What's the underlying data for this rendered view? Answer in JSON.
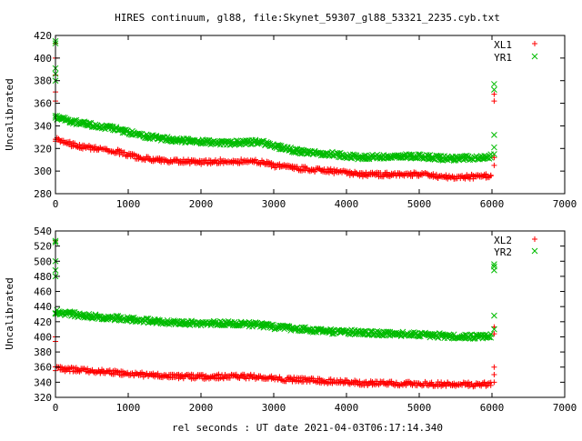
{
  "chart_data": [
    {
      "type": "scatter",
      "title": "HIRES continuum, gl88, file:Skynet_59307_gl88_53321_2235.cyb.txt",
      "xlabel": "",
      "ylabel": "Uncalibrated",
      "xlim": [
        0,
        7000
      ],
      "ylim": [
        280,
        420
      ],
      "xticks": [
        "0",
        "1000",
        "2000",
        "3000",
        "4000",
        "5000",
        "6000",
        "7000"
      ],
      "yticks": [
        "280",
        "300",
        "320",
        "340",
        "360",
        "380",
        "400",
        "420"
      ],
      "legend_position": "top-right",
      "series": [
        {
          "name": "XL1",
          "marker": "+",
          "color": "#ff0000",
          "trend": [
            [
              0,
              328
            ],
            [
              300,
              322
            ],
            [
              800,
              318
            ],
            [
              1200,
              311
            ],
            [
              1600,
              309
            ],
            [
              2000,
              308
            ],
            [
              2400,
              309
            ],
            [
              2800,
              308
            ],
            [
              3000,
              305
            ],
            [
              3400,
              302
            ],
            [
              3800,
              300
            ],
            [
              4200,
              297
            ],
            [
              4600,
              297
            ],
            [
              5000,
              297
            ],
            [
              5400,
              295
            ],
            [
              5800,
              295
            ],
            [
              6000,
              296
            ]
          ],
          "outliers": [
            [
              0,
              413
            ],
            [
              0,
              400
            ],
            [
              0,
              385
            ],
            [
              0,
              370
            ],
            [
              0,
              362
            ],
            [
              6030,
              368
            ],
            [
              6030,
              362
            ],
            [
              6030,
              305
            ],
            [
              6030,
              312
            ]
          ]
        },
        {
          "name": "YR1",
          "marker": "x",
          "color": "#00bb00",
          "trend": [
            [
              0,
              348
            ],
            [
              300,
              343
            ],
            [
              800,
              338
            ],
            [
              1200,
              331
            ],
            [
              1600,
              328
            ],
            [
              2000,
              326
            ],
            [
              2400,
              325
            ],
            [
              2800,
              326
            ],
            [
              3000,
              322
            ],
            [
              3400,
              317
            ],
            [
              3800,
              315
            ],
            [
              4200,
              312
            ],
            [
              4600,
              313
            ],
            [
              5000,
              313
            ],
            [
              5400,
              311
            ],
            [
              5800,
              312
            ],
            [
              6000,
              313
            ]
          ],
          "outliers": [
            [
              0,
              415
            ],
            [
              0,
              413
            ],
            [
              0,
              391
            ],
            [
              0,
              386
            ],
            [
              0,
              380
            ],
            [
              6030,
              377
            ],
            [
              6030,
              372
            ],
            [
              6030,
              332
            ],
            [
              6030,
              321
            ],
            [
              6030,
              315
            ]
          ]
        }
      ]
    },
    {
      "type": "scatter",
      "title": "",
      "xlabel": "rel seconds : UT date 2021-04-03T06:17:14.340",
      "ylabel": "Uncalibrated",
      "xlim": [
        0,
        7000
      ],
      "ylim": [
        320,
        540
      ],
      "xticks": [
        "0",
        "1000",
        "2000",
        "3000",
        "4000",
        "5000",
        "6000",
        "7000"
      ],
      "yticks": [
        "320",
        "340",
        "360",
        "380",
        "400",
        "420",
        "440",
        "460",
        "480",
        "500",
        "520",
        "540"
      ],
      "legend_position": "top-right",
      "series": [
        {
          "name": "XL2",
          "marker": "+",
          "color": "#ff0000",
          "trend": [
            [
              0,
              358
            ],
            [
              400,
              356
            ],
            [
              800,
              353
            ],
            [
              1200,
              350
            ],
            [
              1600,
              348
            ],
            [
              2000,
              347
            ],
            [
              2400,
              348
            ],
            [
              2800,
              347
            ],
            [
              3000,
              345
            ],
            [
              3400,
              343
            ],
            [
              3800,
              341
            ],
            [
              4200,
              339
            ],
            [
              4600,
              338
            ],
            [
              5000,
              338
            ],
            [
              5400,
              337
            ],
            [
              5800,
              337
            ],
            [
              6000,
              338
            ]
          ],
          "outliers": [
            [
              0,
              527
            ],
            [
              0,
              400
            ],
            [
              0,
              394
            ],
            [
              6030,
              413
            ],
            [
              6030,
              404
            ],
            [
              6030,
              360
            ],
            [
              6030,
              350
            ],
            [
              6030,
              340
            ]
          ]
        },
        {
          "name": "YR2",
          "marker": "x",
          "color": "#00bb00",
          "trend": [
            [
              0,
              433
            ],
            [
              400,
              428
            ],
            [
              800,
              425
            ],
            [
              1200,
              422
            ],
            [
              1600,
              419
            ],
            [
              2000,
              418
            ],
            [
              2400,
              418
            ],
            [
              2800,
              416
            ],
            [
              3000,
              413
            ],
            [
              3400,
              410
            ],
            [
              3800,
              407
            ],
            [
              4200,
              406
            ],
            [
              4600,
              404
            ],
            [
              5000,
              403
            ],
            [
              5400,
              401
            ],
            [
              5800,
              400
            ],
            [
              6000,
              401
            ]
          ],
          "outliers": [
            [
              0,
              527
            ],
            [
              0,
              525
            ],
            [
              0,
              500
            ],
            [
              0,
              488
            ],
            [
              0,
              480
            ],
            [
              6030,
              496
            ],
            [
              6030,
              493
            ],
            [
              6030,
              488
            ],
            [
              6030,
              428
            ],
            [
              6030,
              410
            ]
          ]
        }
      ]
    }
  ]
}
